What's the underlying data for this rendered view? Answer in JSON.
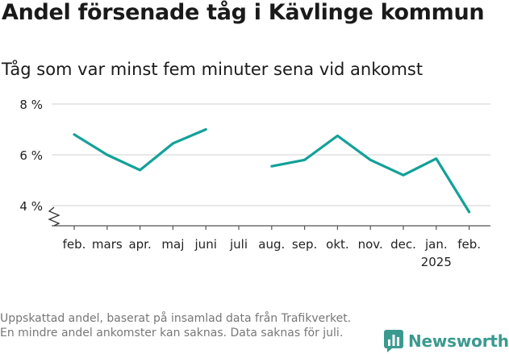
{
  "title": "Andel försenade tåg i Kävlinge kommun",
  "subtitle": "Tåg som var minst fem minuter sena vid ankomst",
  "footnote": "Uppskattad andel, baserat på insamlad data från Trafikverket. En mindre andel ankomster kan saknas. Data saknas för juli.",
  "logo_text": "Newsworthy",
  "colors": {
    "line": "#12a199",
    "grid": "#d9d9d9",
    "axis": "#555555",
    "logo": "#3b9a8f"
  },
  "chart_data": {
    "type": "line",
    "categories": [
      "feb.",
      "mars",
      "apr.",
      "maj",
      "juni",
      "juli",
      "aug.",
      "sep.",
      "okt.",
      "nov.",
      "dec.",
      "jan.",
      "feb."
    ],
    "year_label": "2025",
    "series": [
      {
        "values": [
          6.8,
          6.0,
          5.4,
          6.45,
          7.0,
          null,
          5.55,
          5.8,
          6.75,
          5.8,
          5.2,
          5.85,
          3.75
        ]
      }
    ],
    "y_ticks": [
      4,
      6,
      8
    ],
    "y_tick_labels": [
      "4 %",
      "6 %",
      "8 %"
    ],
    "ylim": [
      3.3,
      8.0
    ],
    "axis_break": true,
    "grid": true
  }
}
